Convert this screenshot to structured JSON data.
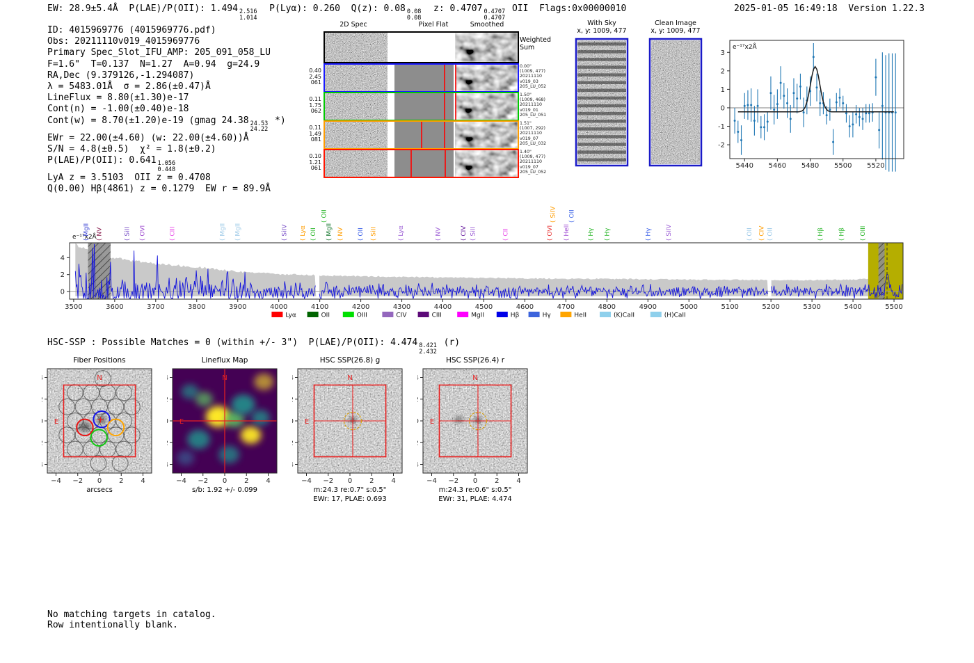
{
  "header": {
    "left_segments": [
      {
        "t": "EW: 28.9±5.4Å  P(LAE)/P(OII): 1.494"
      },
      {
        "hi": "2.516",
        "lo": "1.014"
      },
      {
        "t": "  P(Lyα): 0.260  Q(z): 0.08"
      },
      {
        "hi": "0.08",
        "lo": "0.08"
      },
      {
        "t": "  z: 0.4707"
      },
      {
        "hi": "0.4707",
        "lo": "0.4707"
      },
      {
        "t": " OII  Flags:0x00000010"
      }
    ],
    "datetime": "2025-01-05 16:49:18  Version 1.22.3"
  },
  "info_block": {
    "lines": [
      [
        {
          "t": "ID: 4015969776 (4015969776.pdf)"
        }
      ],
      [
        {
          "t": "Obs: 20211110v019_4015969776"
        }
      ],
      [
        {
          "t": "Primary Spec_Slot_IFU_AMP: 205_091_058_LU"
        }
      ],
      [
        {
          "t": "F=1.6\"  T=0.137  N=1.27  A=0.94  g=24.9"
        }
      ],
      [
        {
          "t": "RA,Dec (9.379126,-1.294087)"
        }
      ],
      [
        {
          "t": "λ = 5483.01Å  σ = 2.86(±0.47)Å"
        }
      ],
      [
        {
          "t": "LineFlux = 8.80(±1.30)e-17"
        }
      ],
      [
        {
          "t": "Cont(n) = -1.00(±0.40)e-18"
        }
      ],
      [
        {
          "t": "Cont(w) = 8.70(±1.20)e-19 (gmag 24.38"
        },
        {
          "hi": "24.53",
          "lo": "24.22"
        },
        {
          "t": " *)"
        }
      ],
      [
        {
          "t": "EWr = 22.00(±4.60) (w: 22.00(±4.60))Å"
        }
      ],
      [
        {
          "t": "S/N = 4.8(±0.5)  χ² = 1.8(±0.2)"
        }
      ],
      [
        {
          "t": "P(LAE)/P(OII): 0.641"
        },
        {
          "hi": "1.056",
          "lo": "0.448"
        }
      ],
      [
        {
          "t": "LyA z = 3.5103  OII z = 0.4708"
        }
      ],
      [
        {
          "t": "Q(0.00) Hβ(4861) z = 0.1279  EW r = 89.9Å"
        }
      ]
    ]
  },
  "spec2d": {
    "col_headers": [
      "2D Spec",
      "Pixel Flat",
      "Smoothed"
    ],
    "rows": [
      {
        "border": "#000000",
        "left": [],
        "right": [
          "Weighted",
          "Sum"
        ],
        "weighted": true,
        "redlines": []
      },
      {
        "border": "#1a1aff",
        "left": [
          "0.40",
          "2.45",
          "061"
        ],
        "right": [
          "0.00\"",
          "(1009, 477)",
          "20211110",
          "v019_03",
          "205_LU_052"
        ],
        "redlines": [
          172,
          188
        ]
      },
      {
        "border": "#00c800",
        "left": [
          "0.11",
          "1.75",
          "062"
        ],
        "right": [
          "1.50\"",
          "(1009, 468)",
          "20211110",
          "v019_01",
          "205_LU_051"
        ],
        "redlines": [
          172,
          188
        ]
      },
      {
        "border": "#ff9d00",
        "left": [
          "0.11",
          "1.49",
          "081"
        ],
        "right": [
          "1.51\"",
          "(1007, 292)",
          "20211110",
          "v019_07",
          "205_LU_032"
        ],
        "redlines": [
          139,
          172
        ]
      },
      {
        "border": "#ff1400",
        "left": [
          "0.10",
          "1.21",
          "061"
        ],
        "right": [
          "1.40\"",
          "(1009, 477)",
          "20211110",
          "v019_07",
          "205_LU_052"
        ],
        "redlines": [
          124,
          173
        ]
      }
    ]
  },
  "small_cutouts": {
    "with_sky": {
      "title": "With Sky",
      "coords": "x, y: 1009, 477"
    },
    "clean": {
      "title": "Clean Image",
      "coords": "x, y: 1009, 477"
    },
    "border_color": "#1a1ac8"
  },
  "hsc_summary": {
    "segments": [
      {
        "t": "HSC-SSP : Possible Matches = 0 (within +/- 3\")  P(LAE)/P(OII): 4.474"
      },
      {
        "hi": "8.421",
        "lo": "2.432"
      },
      {
        "t": " (r)"
      }
    ]
  },
  "cutout_panels": {
    "axis_ticks": [
      -4,
      -2,
      0,
      2,
      4
    ],
    "compass": {
      "n": "N",
      "e": "E",
      "color": "#e82020"
    },
    "fiber_colors": {
      "blue": "#1414e8",
      "red": "#e81414",
      "green": "#14c814",
      "orange": "#ffa500"
    },
    "viridis": [
      "#440154",
      "#3b528b",
      "#21918c",
      "#5ec962",
      "#fde725"
    ],
    "panels": [
      {
        "key": "fiber_positions",
        "title": "Fiber Positions",
        "xlabel": "arcsecs",
        "caption": ""
      },
      {
        "key": "lineflux_map",
        "title": "Lineflux Map",
        "xlabel": "s/b: 1.92 +/- 0.099",
        "caption": ""
      },
      {
        "key": "hsc_g",
        "title": "HSC SSP(26.8) g",
        "xlabel": "m:24.3 re:0.7\" s:0.5\"",
        "caption": "EWr: 17, PLAE: 0.693"
      },
      {
        "key": "hsc_r",
        "title": "HSC SSP(26.4) r",
        "xlabel": "m:24.3 re:0.6\" s:0.5\"",
        "caption": "EWr: 31, PLAE: 4.474"
      }
    ]
  },
  "footer": {
    "line1": "No matching targets in catalog.",
    "line2": "Row intentionally blank."
  },
  "chart_data": [
    {
      "id": "line_fit_zoom",
      "type": "scatter",
      "annotation": "e⁻¹⁷x2Å",
      "xlim": [
        5431,
        5537
      ],
      "ylim": [
        -2.75,
        3.65
      ],
      "xticks": [
        5440,
        5460,
        5480,
        5500,
        5520
      ],
      "yticks": [
        -2,
        -1,
        0,
        1,
        2,
        3
      ],
      "point_color": "#1f77b4",
      "fit_color": "#1a1a1a",
      "x": [
        5434,
        5436,
        5438,
        5440,
        5442,
        5444,
        5446,
        5448,
        5450,
        5452,
        5454,
        5456,
        5458,
        5460,
        5462,
        5464,
        5466,
        5468,
        5470,
        5472,
        5474,
        5476,
        5478,
        5480,
        5482,
        5484,
        5486,
        5488,
        5490,
        5492,
        5494,
        5496,
        5498,
        5500,
        5502,
        5504,
        5506,
        5508,
        5510,
        5512,
        5514,
        5516,
        5518,
        5520,
        5522,
        5524,
        5526,
        5528,
        5530,
        5532
      ],
      "y": [
        -0.7,
        -1.3,
        -1.75,
        0.1,
        0.15,
        0.15,
        -0.7,
        0.1,
        -1.05,
        -1.05,
        -0.75,
        0.8,
        -0.1,
        0.2,
        1.35,
        0.65,
        0.25,
        -0.6,
        0.8,
        0.5,
        1.15,
        -0.25,
        0.4,
        0.9,
        2.75,
        1.1,
        0.25,
        0.25,
        -0.4,
        -0.1,
        -1.85,
        0.3,
        0.55,
        0.25,
        -0.3,
        -1.0,
        -0.9,
        -0.35,
        -0.5,
        -0.6,
        -0.3,
        -0.3,
        -0.25,
        1.65,
        -1.2,
        0.1,
        -0.25,
        -0.25,
        -0.25,
        -0.25
      ],
      "yerr": [
        0.7,
        0.6,
        0.8,
        0.7,
        0.8,
        0.9,
        0.8,
        0.9,
        0.6,
        0.7,
        0.55,
        0.9,
        0.8,
        0.8,
        0.9,
        0.7,
        0.8,
        0.75,
        0.8,
        0.8,
        0.7,
        0.8,
        0.75,
        0.8,
        0.75,
        0.75,
        0.7,
        0.6,
        0.5,
        0.6,
        0.7,
        0.5,
        0.5,
        0.4,
        0.5,
        0.6,
        0.7,
        0.5,
        0.5,
        0.6,
        0.5,
        0.5,
        0.5,
        1.0,
        1.0,
        2.9,
        3.1,
        3.2,
        3.2,
        3.2
      ],
      "fit": {
        "center": 5483.01,
        "sigma": 2.86,
        "amplitude": 2.45,
        "baseline": -0.22
      }
    },
    {
      "id": "full_spectrum",
      "type": "line",
      "annotation": "e⁻¹⁷x2Å",
      "xlim": [
        3490,
        5522
      ],
      "ylim": [
        -0.9,
        5.75
      ],
      "xticks": [
        3500,
        3600,
        3700,
        3800,
        3900,
        4000,
        4100,
        4200,
        4300,
        4400,
        4500,
        4600,
        4700,
        4800,
        4900,
        5000,
        5100,
        5200,
        5300,
        5400,
        5500
      ],
      "yticks": [
        0,
        2,
        4
      ],
      "line_color": "#1414dc",
      "envelope_color": "#c9c9c9",
      "noise_seed": 421,
      "envelope": [
        [
          3500,
          5.6
        ],
        [
          3520,
          5.2
        ],
        [
          3540,
          4.8
        ],
        [
          3560,
          4.4
        ],
        [
          3600,
          3.9
        ],
        [
          3650,
          3.6
        ],
        [
          3700,
          3.3
        ],
        [
          3750,
          3.1
        ],
        [
          3800,
          2.9
        ],
        [
          3850,
          2.6
        ],
        [
          3900,
          2.35
        ],
        [
          3950,
          2.2
        ],
        [
          4000,
          2.05
        ],
        [
          4100,
          1.9
        ],
        [
          4200,
          1.8
        ],
        [
          4300,
          1.75
        ],
        [
          4400,
          1.65
        ],
        [
          4500,
          1.6
        ],
        [
          4600,
          1.55
        ],
        [
          4700,
          1.5
        ],
        [
          4800,
          1.5
        ],
        [
          4900,
          1.45
        ],
        [
          5000,
          1.4
        ],
        [
          5100,
          1.4
        ],
        [
          5200,
          1.35
        ],
        [
          5300,
          1.35
        ],
        [
          5400,
          1.4
        ],
        [
          5460,
          1.55
        ],
        [
          5520,
          1.7
        ]
      ],
      "envelope_bottom": -0.55,
      "gaps": [
        4095,
        5197
      ],
      "peak": {
        "center": 5483,
        "amplitude": 2.6,
        "sigma": 2.9
      },
      "grey_hatch_bands": [
        [
          3535,
          3590
        ],
        [
          5462,
          5477
        ]
      ],
      "yellow_band": {
        "range": [
          5437,
          5522
        ],
        "color": "#b5ae00"
      },
      "dashed_line_x": 5483,
      "line_labels": [
        {
          "wl": 3530,
          "label": "MgII",
          "color": "#3b44d4",
          "raised": false
        },
        {
          "wl": 3562,
          "label": "NV",
          "color": "#8b2252",
          "raised": false
        },
        {
          "wl": 3630,
          "label": "SiII",
          "color": "#7b52c8",
          "raised": false
        },
        {
          "wl": 3667,
          "label": "OVI",
          "color": "#a04fd0",
          "raised": false
        },
        {
          "wl": 3740,
          "label": "CIII",
          "color": "#e84fe8",
          "raised": false
        },
        {
          "wl": 3862,
          "label": "MgII",
          "color": "#9ecae8",
          "raised": false
        },
        {
          "wl": 3900,
          "label": "MgII",
          "color": "#9ecae8",
          "raised": false
        },
        {
          "wl": 4013,
          "label": "SiIV",
          "color": "#7b52c8",
          "raised": false
        },
        {
          "wl": 4058,
          "label": "Lyα",
          "color": "#ff9d00",
          "raised": false
        },
        {
          "wl": 4084,
          "label": "OII",
          "color": "#2eb82e",
          "raised": false
        },
        {
          "wl": 4110,
          "label": "OII",
          "color": "#2eb82e",
          "raised": true
        },
        {
          "wl": 4122,
          "label": "MgII",
          "color": "#1a7a33",
          "raised": false
        },
        {
          "wl": 4150,
          "label": "NV",
          "color": "#ff9d00",
          "raised": false
        },
        {
          "wl": 4199,
          "label": "OII",
          "color": "#3a5fe8",
          "raised": false
        },
        {
          "wl": 4230,
          "label": "SiII",
          "color": "#ff9d00",
          "raised": false
        },
        {
          "wl": 4297,
          "label": "Lyα",
          "color": "#9d5fd6",
          "raised": false
        },
        {
          "wl": 4388,
          "label": "NV",
          "color": "#9d5fd6",
          "raised": false
        },
        {
          "wl": 4450,
          "label": "CIV",
          "color": "#6a1fa0",
          "raised": false
        },
        {
          "wl": 4473,
          "label": "SiII",
          "color": "#9d5fd6",
          "raised": false
        },
        {
          "wl": 4553,
          "label": "CII",
          "color": "#e84fe8",
          "raised": false
        },
        {
          "wl": 4660,
          "label": "OVI",
          "color": "#e83535",
          "raised": false
        },
        {
          "wl": 4668,
          "label": "SiIV",
          "color": "#ff9d00",
          "raised": true
        },
        {
          "wl": 4701,
          "label": "HeII",
          "color": "#a14fd4",
          "raised": false
        },
        {
          "wl": 4714,
          "label": "OII",
          "color": "#4a6fe8",
          "raised": true
        },
        {
          "wl": 4760,
          "label": "Hγ",
          "color": "#2eb82e",
          "raised": false
        },
        {
          "wl": 4800,
          "label": "Hγ",
          "color": "#2eb82e",
          "raised": false
        },
        {
          "wl": 4900,
          "label": "Hγ",
          "color": "#3a5fe8",
          "raised": false
        },
        {
          "wl": 4950,
          "label": "SiIV",
          "color": "#9d5fd6",
          "raised": false
        },
        {
          "wl": 5147,
          "label": "OII",
          "color": "#9ecae8",
          "raised": false
        },
        {
          "wl": 5177,
          "label": "CIV",
          "color": "#ff9d00",
          "raised": false
        },
        {
          "wl": 5197,
          "label": "OII",
          "color": "#9ecae8",
          "raised": false
        },
        {
          "wl": 5320,
          "label": "Hβ",
          "color": "#2eb82e",
          "raised": false
        },
        {
          "wl": 5372,
          "label": "Hβ",
          "color": "#2eb82e",
          "raised": false
        },
        {
          "wl": 5424,
          "label": "OIII",
          "color": "#2eb82e",
          "raised": false
        }
      ],
      "legend": [
        {
          "label": "Lyα",
          "color": "#ff0000"
        },
        {
          "label": "OII",
          "color": "#006400"
        },
        {
          "label": "OIII",
          "color": "#00e000"
        },
        {
          "label": "CIV",
          "color": "#9467bd"
        },
        {
          "label": "CIII",
          "color": "#5c0a78"
        },
        {
          "label": "MgII",
          "color": "#ff00ff"
        },
        {
          "label": "Hβ",
          "color": "#0000e8"
        },
        {
          "label": "Hγ",
          "color": "#3c64dc"
        },
        {
          "label": "HeII",
          "color": "#ffa500"
        },
        {
          "label": "(K)CaII",
          "color": "#8fd0ec"
        },
        {
          "label": "(H)CaII",
          "color": "#8fd0ec"
        }
      ]
    }
  ]
}
